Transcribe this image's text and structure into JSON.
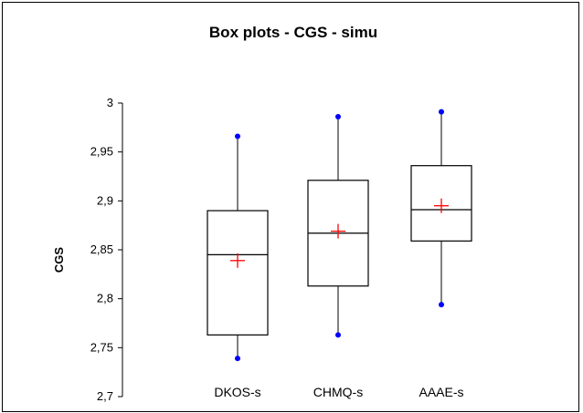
{
  "chart_data": {
    "type": "box",
    "title": "Box plots - CGS - simu",
    "ylabel": "CGS",
    "xlabel": "",
    "ylim": [
      2.7,
      3.0
    ],
    "yticks": [
      2.7,
      2.75,
      2.8,
      2.85,
      2.9,
      2.95,
      3.0
    ],
    "ytick_labels": [
      "2,7",
      "2,75",
      "2,8",
      "2,85",
      "2,9",
      "2,95",
      "3"
    ],
    "grid": false,
    "categories": [
      "DKOS-s",
      "CHMQ-s",
      "AAAE-s"
    ],
    "boxes": [
      {
        "min": 2.739,
        "q1": 2.763,
        "median": 2.845,
        "q3": 2.89,
        "max": 2.966,
        "mean": 2.839
      },
      {
        "min": 2.763,
        "q1": 2.813,
        "median": 2.867,
        "q3": 2.921,
        "max": 2.986,
        "mean": 2.869
      },
      {
        "min": 2.794,
        "q1": 2.859,
        "median": 2.891,
        "q3": 2.936,
        "max": 2.991,
        "mean": 2.895
      }
    ],
    "colors": {
      "whisker_end": "#0000ff",
      "mean_marker": "#ff0000",
      "box": "#000000"
    }
  }
}
